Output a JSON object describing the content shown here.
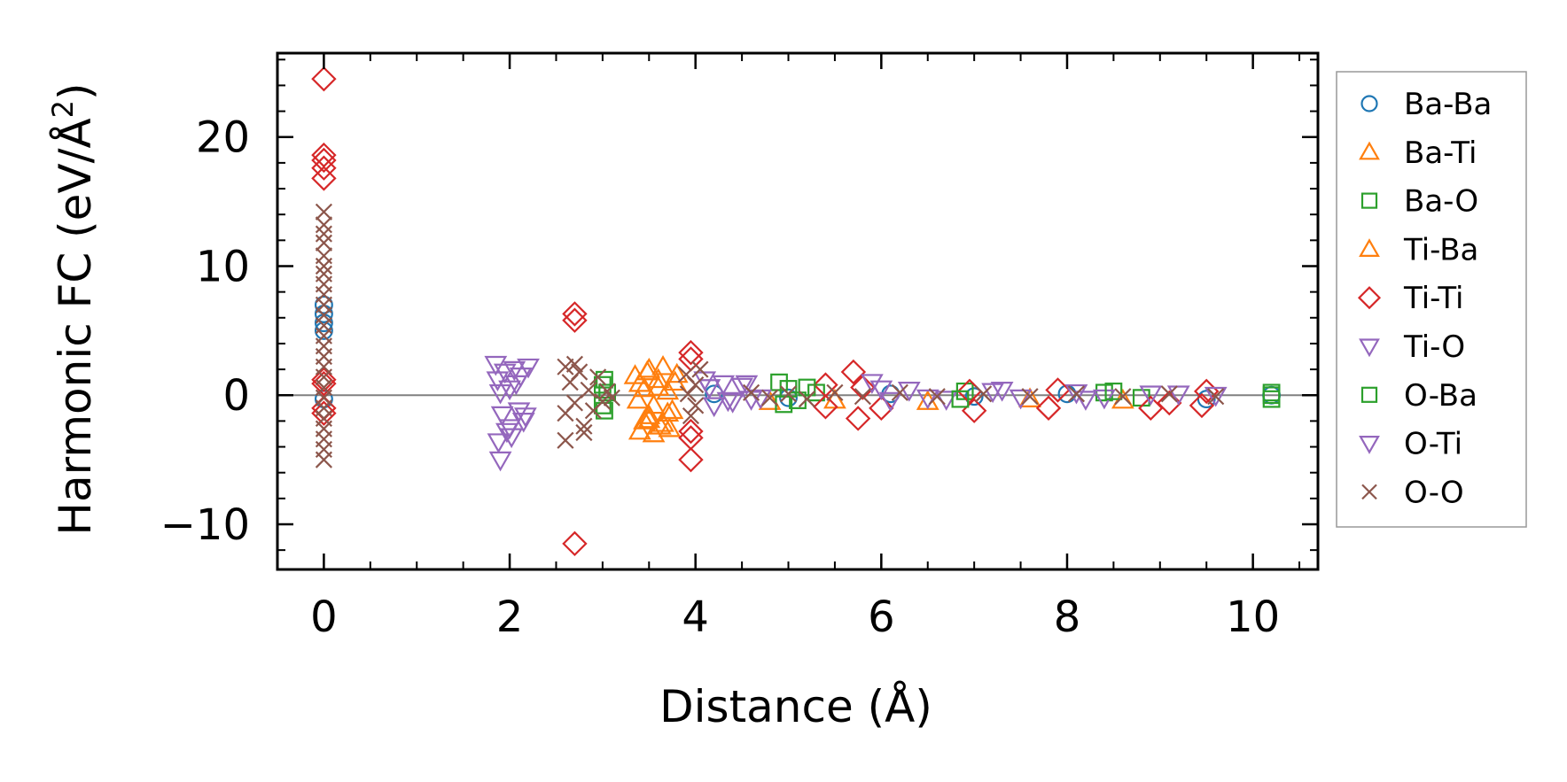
{
  "chart_data": {
    "type": "scatter",
    "xlabel": "Distance (Å)",
    "ylabel_prefix": "Harmonic FC (eV/Å",
    "ylabel_sup": "2",
    "ylabel_suffix": ")",
    "xlim": [
      -0.5,
      10.7
    ],
    "ylim": [
      -13.5,
      26.5
    ],
    "xticks": [
      0,
      2,
      4,
      6,
      8,
      10
    ],
    "xtick_labels": [
      "0",
      "2",
      "4",
      "6",
      "8",
      "10"
    ],
    "yticks": [
      -10,
      0,
      10,
      20
    ],
    "ytick_labels": [
      "−10",
      "0",
      "10",
      "20"
    ],
    "zero_line": 0,
    "legend_position": "outside-right",
    "series": [
      {
        "name": "Ba-Ba",
        "marker": "circle",
        "color": "#1f77b4",
        "points": [
          [
            0,
            7.0
          ],
          [
            0,
            6.3
          ],
          [
            0,
            5.6
          ],
          [
            0,
            5.0
          ],
          [
            0,
            -0.3
          ],
          [
            4.2,
            0.1
          ],
          [
            5.0,
            -0.2
          ],
          [
            6.1,
            0.1
          ],
          [
            7.0,
            -0.1
          ],
          [
            8.0,
            0.1
          ],
          [
            9.5,
            -0.3
          ],
          [
            10.2,
            0.0
          ]
        ]
      },
      {
        "name": "Ba-Ti",
        "marker": "triangle-up",
        "color": "#ff7f0e",
        "points": [
          [
            3.35,
            1.5
          ],
          [
            3.4,
            -2.8
          ],
          [
            3.45,
            0.5
          ],
          [
            3.5,
            -1.6
          ],
          [
            3.5,
            2.0
          ],
          [
            3.55,
            -0.8
          ],
          [
            3.6,
            1.2
          ],
          [
            3.65,
            -2.2
          ],
          [
            3.7,
            0.3
          ],
          [
            3.75,
            -1.2
          ],
          [
            3.8,
            1.6
          ],
          [
            3.55,
            -3.0
          ],
          [
            3.45,
            -2.0
          ],
          [
            3.65,
            2.2
          ],
          [
            3.38,
            -0.4
          ],
          [
            3.72,
            -2.6
          ],
          [
            4.8,
            -0.5
          ],
          [
            5.5,
            -0.4
          ],
          [
            6.5,
            -0.5
          ],
          [
            7.6,
            -0.3
          ],
          [
            8.6,
            -0.4
          ]
        ]
      },
      {
        "name": "Ba-O",
        "marker": "square",
        "color": "#2ca02c",
        "points": [
          [
            3.0,
            0.8
          ],
          [
            3.0,
            -0.8
          ],
          [
            3.05,
            0.2
          ],
          [
            4.9,
            1.0
          ],
          [
            5.0,
            0.5
          ],
          [
            5.1,
            -0.4
          ],
          [
            5.3,
            0.2
          ],
          [
            6.9,
            0.3
          ],
          [
            8.4,
            0.2
          ],
          [
            8.8,
            -0.2
          ],
          [
            10.2,
            0.0
          ],
          [
            10.2,
            -0.3
          ]
        ]
      },
      {
        "name": "Ti-Ba",
        "marker": "triangle-up",
        "color": "#ff7f0e",
        "points": [
          [
            3.4,
            0.9
          ],
          [
            3.5,
            -1.9
          ],
          [
            3.6,
            0.6
          ],
          [
            3.7,
            -1.4
          ],
          [
            3.78,
            1.0
          ],
          [
            3.48,
            1.8
          ],
          [
            3.62,
            -2.4
          ]
        ]
      },
      {
        "name": "Ti-Ti",
        "marker": "diamond",
        "color": "#d62728",
        "points": [
          [
            0,
            24.5
          ],
          [
            0,
            18.6
          ],
          [
            0,
            18.2
          ],
          [
            0,
            17.6
          ],
          [
            0,
            16.8
          ],
          [
            0,
            1.2
          ],
          [
            0,
            0.9
          ],
          [
            0,
            -1.0
          ],
          [
            0,
            -1.4
          ],
          [
            2.7,
            6.3
          ],
          [
            2.7,
            5.8
          ],
          [
            2.7,
            -11.5
          ],
          [
            3.95,
            3.3
          ],
          [
            3.95,
            2.8
          ],
          [
            3.95,
            -2.8
          ],
          [
            3.95,
            -3.3
          ],
          [
            3.95,
            -5.0
          ],
          [
            5.4,
            0.8
          ],
          [
            5.4,
            -0.9
          ],
          [
            5.7,
            1.8
          ],
          [
            5.75,
            -1.8
          ],
          [
            5.8,
            0.6
          ],
          [
            6.0,
            -1.0
          ],
          [
            6.95,
            0.3
          ],
          [
            7.0,
            -1.2
          ],
          [
            7.8,
            -1.0
          ],
          [
            7.9,
            0.4
          ],
          [
            8.9,
            -1.0
          ],
          [
            9.1,
            -0.6
          ],
          [
            9.45,
            -0.8
          ],
          [
            9.5,
            0.3
          ]
        ]
      },
      {
        "name": "Ti-O",
        "marker": "triangle-down",
        "color": "#9467bd",
        "points": [
          [
            1.85,
            2.4
          ],
          [
            1.9,
            -5.0
          ],
          [
            1.95,
            1.8
          ],
          [
            2.0,
            -2.5
          ],
          [
            2.05,
            2.0
          ],
          [
            2.1,
            -1.2
          ],
          [
            1.88,
            -3.6
          ],
          [
            2.0,
            0.5
          ],
          [
            2.12,
            1.5
          ],
          [
            2.2,
            2.2
          ],
          [
            2.15,
            -2.0
          ],
          [
            1.92,
            -1.5
          ],
          [
            4.1,
            1.2
          ],
          [
            4.2,
            -0.8
          ],
          [
            4.3,
            0.9
          ],
          [
            4.4,
            -0.5
          ],
          [
            4.5,
            0.7
          ],
          [
            4.6,
            -0.3
          ],
          [
            5.9,
            1.0
          ],
          [
            6.1,
            -0.4
          ],
          [
            6.3,
            0.4
          ],
          [
            6.7,
            -0.3
          ],
          [
            7.2,
            0.3
          ],
          [
            7.5,
            -0.2
          ],
          [
            8.1,
            0.2
          ],
          [
            8.4,
            -0.2
          ],
          [
            9.2,
            0.1
          ],
          [
            9.6,
            0.0
          ]
        ]
      },
      {
        "name": "O-Ba",
        "marker": "square",
        "color": "#2ca02c",
        "points": [
          [
            3.02,
            1.2
          ],
          [
            3.02,
            -1.2
          ],
          [
            4.95,
            -0.7
          ],
          [
            5.2,
            0.6
          ],
          [
            6.85,
            -0.3
          ],
          [
            8.5,
            0.3
          ],
          [
            10.2,
            0.2
          ]
        ]
      },
      {
        "name": "O-Ti",
        "marker": "triangle-down",
        "color": "#9467bd",
        "points": [
          [
            1.87,
            1.2
          ],
          [
            1.97,
            -2.8
          ],
          [
            2.07,
            0.9
          ],
          [
            2.17,
            -1.6
          ],
          [
            2.02,
            -3.2
          ],
          [
            1.9,
            0.2
          ],
          [
            4.15,
            0.6
          ],
          [
            4.35,
            -0.4
          ],
          [
            4.55,
            0.9
          ],
          [
            4.7,
            -0.2
          ],
          [
            6.0,
            0.5
          ],
          [
            6.5,
            -0.2
          ],
          [
            7.3,
            0.4
          ],
          [
            8.2,
            -0.3
          ],
          [
            8.9,
            0.1
          ]
        ]
      },
      {
        "name": "O-O",
        "marker": "x",
        "color": "#8c564b",
        "points": [
          [
            0,
            14.2
          ],
          [
            0,
            13.2
          ],
          [
            0,
            12.5
          ],
          [
            0,
            11.8
          ],
          [
            0,
            10.8
          ],
          [
            0,
            10.0
          ],
          [
            0,
            9.4
          ],
          [
            0,
            8.6
          ],
          [
            0,
            7.8
          ],
          [
            0,
            7.0
          ],
          [
            0,
            6.2
          ],
          [
            0,
            5.4
          ],
          [
            0,
            4.6
          ],
          [
            0,
            3.8
          ],
          [
            0,
            3.0
          ],
          [
            0,
            2.2
          ],
          [
            0,
            1.4
          ],
          [
            0,
            0.6
          ],
          [
            0,
            -0.2
          ],
          [
            0,
            -1.0
          ],
          [
            0,
            -1.8
          ],
          [
            0,
            -2.6
          ],
          [
            0,
            -3.4
          ],
          [
            0,
            -4.2
          ],
          [
            0,
            -5.0
          ],
          [
            2.6,
            2.2
          ],
          [
            2.6,
            -1.4
          ],
          [
            2.6,
            -3.5
          ],
          [
            2.65,
            1.0
          ],
          [
            2.7,
            -0.6
          ],
          [
            2.75,
            1.8
          ],
          [
            2.8,
            -2.4
          ],
          [
            2.85,
            0.4
          ],
          [
            2.9,
            -1.2
          ],
          [
            2.95,
            1.4
          ],
          [
            2.7,
            2.4
          ],
          [
            2.8,
            -2.9
          ],
          [
            3.0,
            -0.5
          ],
          [
            3.05,
            0.3
          ],
          [
            3.1,
            -0.2
          ],
          [
            3.9,
            1.6
          ],
          [
            3.95,
            -1.6
          ],
          [
            4.0,
            0.8
          ],
          [
            4.0,
            -0.8
          ],
          [
            3.92,
            0.1
          ],
          [
            4.05,
            2.0
          ],
          [
            4.6,
            0.2
          ],
          [
            4.8,
            -0.2
          ],
          [
            5.0,
            0.1
          ],
          [
            5.2,
            -0.3
          ],
          [
            5.5,
            0.2
          ],
          [
            5.8,
            -0.1
          ],
          [
            6.2,
            0.2
          ],
          [
            6.6,
            -0.1
          ],
          [
            7.1,
            0.1
          ],
          [
            7.6,
            -0.1
          ],
          [
            8.1,
            0.1
          ],
          [
            8.6,
            -0.1
          ],
          [
            9.1,
            0.1
          ],
          [
            9.6,
            -0.1
          ]
        ]
      }
    ]
  }
}
